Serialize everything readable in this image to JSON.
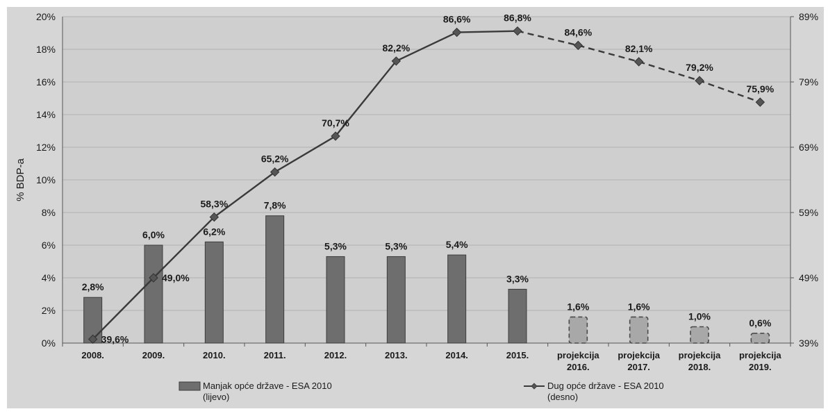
{
  "chart_data": {
    "type": "bar",
    "categories": [
      [
        "2008."
      ],
      [
        "2009."
      ],
      [
        "2010."
      ],
      [
        "2011."
      ],
      [
        "2012."
      ],
      [
        "2013."
      ],
      [
        "2014."
      ],
      [
        "2015."
      ],
      [
        "projekcija",
        "2016."
      ],
      [
        "projekcija",
        "2017."
      ],
      [
        "projekcija",
        "2018."
      ],
      [
        "projekcija",
        "2019."
      ]
    ],
    "ylabel": "% BDP-a",
    "y_left": {
      "min": 0,
      "max": 20,
      "step": 2,
      "tick_labels": [
        "0%",
        "2%",
        "4%",
        "6%",
        "8%",
        "10%",
        "12%",
        "14%",
        "16%",
        "18%",
        "20%"
      ]
    },
    "y_right": {
      "min": 39,
      "max": 89,
      "step": 10,
      "tick_labels": [
        "39%",
        "49%",
        "59%",
        "69%",
        "79%",
        "89%"
      ]
    },
    "grid": true,
    "legend_position": "bottom",
    "series": [
      {
        "name": "Manjak opće države - ESA 2010",
        "name_line2": "(lijevo)",
        "type": "bar",
        "axis": "left",
        "values": [
          2.8,
          6.0,
          6.2,
          7.8,
          5.3,
          5.3,
          5.4,
          3.3,
          1.6,
          1.6,
          1.0,
          0.6
        ],
        "labels": [
          "2,8%",
          "6,0%",
          "6,2%",
          "7,8%",
          "5,3%",
          "5,3%",
          "5,4%",
          "3,3%",
          "1,6%",
          "1,6%",
          "1,0%",
          "0,6%"
        ],
        "projected": [
          false,
          false,
          false,
          false,
          false,
          false,
          false,
          false,
          true,
          true,
          true,
          true
        ],
        "color": "#6e6e6e",
        "projected_color": "#a8a8a8"
      },
      {
        "name": "Dug opće države - ESA 2010",
        "name_line2": "(desno)",
        "type": "line",
        "axis": "right",
        "values": [
          39.6,
          49.0,
          58.3,
          65.2,
          70.7,
          82.2,
          86.6,
          86.8,
          84.6,
          82.1,
          79.2,
          75.9
        ],
        "labels": [
          "39,6%",
          "49,0%",
          "58,3%",
          "65,2%",
          "70,7%",
          "82,2%",
          "86,6%",
          "86,8%",
          "84,6%",
          "82,1%",
          "79,2%",
          "75,9%"
        ],
        "projected": [
          false,
          false,
          false,
          false,
          false,
          false,
          false,
          false,
          true,
          true,
          true,
          true
        ],
        "color": "#3a3a3a"
      }
    ]
  }
}
